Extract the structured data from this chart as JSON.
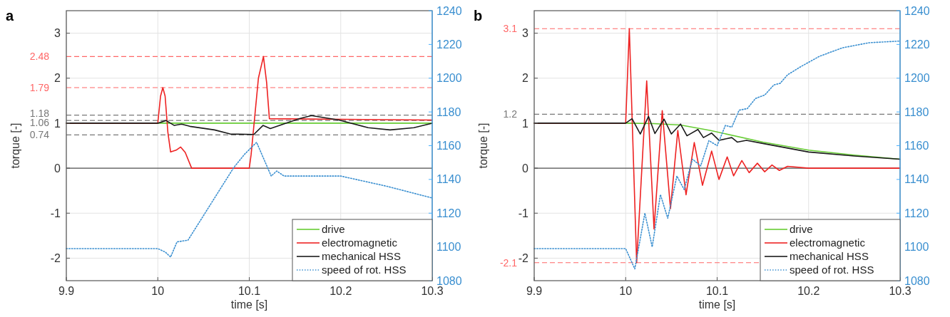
{
  "chart_data": [
    {
      "type": "line",
      "title": "a",
      "xlabel": "time [s]",
      "ylabel": "torque [-]",
      "xlim": [
        9.9,
        10.3
      ],
      "xticks": [
        9.9,
        10,
        10.1,
        10.2,
        10.3
      ],
      "ylim": [
        -2.5,
        3.5
      ],
      "yticks": [
        -2,
        -1,
        0,
        1,
        2,
        3
      ],
      "y2lim": [
        1080,
        1240
      ],
      "y2ticks": [
        1080,
        1100,
        1120,
        1140,
        1160,
        1180,
        1200,
        1220,
        1240
      ],
      "grid": true,
      "legend": "bottom right",
      "ref_lines": [
        {
          "axis": "y",
          "value": 0,
          "color": "#555555",
          "line_style": "solid"
        },
        {
          "axis": "y",
          "value": 2.48,
          "label": "2.48",
          "color": "#ff6666",
          "line_style": "dashed"
        },
        {
          "axis": "y",
          "value": 1.79,
          "label": "1.79",
          "color": "#ff6666",
          "line_style": "dashed"
        },
        {
          "axis": "y",
          "value": 1.18,
          "label": "1.18",
          "color": "#777777",
          "line_style": "dashed"
        },
        {
          "axis": "y",
          "value": 1.06,
          "label": "1.06",
          "color": "#777777",
          "line_style": "dashed"
        },
        {
          "axis": "y",
          "value": 0.74,
          "label": "0.74",
          "color": "#777777",
          "line_style": "dashed"
        }
      ],
      "series": [
        {
          "name": "drive",
          "color": "#66cc33",
          "line_style": "solid",
          "x": [
            9.9,
            10.3
          ],
          "values": [
            1,
            1
          ]
        },
        {
          "name": "electromagnetic",
          "color": "#ee2222",
          "line_style": "solid",
          "x": [
            9.9,
            10.0,
            10.003,
            10.0055,
            10.008,
            10.011,
            10.014,
            10.02,
            10.025,
            10.03,
            10.037,
            10.1,
            10.102,
            10.11,
            10.1155,
            10.119,
            10.122,
            10.3
          ],
          "values": [
            1,
            1,
            1.6,
            1.79,
            1.6,
            0.8,
            0.36,
            0.4,
            0.47,
            0.35,
            0,
            0,
            0.3,
            2.0,
            2.48,
            1.9,
            1.1,
            1.07
          ]
        },
        {
          "name": "mechanical HSS",
          "color": "#1a1a1a",
          "line_style": "solid",
          "x": [
            9.9,
            10.0,
            10.009,
            10.018,
            10.026,
            10.035,
            10.062,
            10.079,
            10.105,
            10.115,
            10.123,
            10.14,
            10.155,
            10.168,
            10.198,
            10.23,
            10.254,
            10.28,
            10.3
          ],
          "values": [
            1,
            1,
            1.06,
            0.95,
            0.98,
            0.93,
            0.85,
            0.76,
            0.75,
            0.95,
            0.88,
            1.0,
            1.1,
            1.17,
            1.07,
            0.9,
            0.85,
            0.9,
            1.0
          ]
        },
        {
          "name": "speed of rot. HSS",
          "color": "#3a8fd0",
          "line_style": "dotted",
          "axis": "y2",
          "x": [
            9.9,
            10.0,
            10.008,
            10.014,
            10.021,
            10.033,
            10.083,
            10.095,
            10.108,
            10.124,
            10.13,
            10.138,
            10.15,
            10.2,
            10.25,
            10.3
          ],
          "values": [
            1099,
            1099,
            1097,
            1094,
            1103,
            1104,
            1147,
            1155,
            1162,
            1142,
            1145,
            1142,
            1142,
            1142,
            1136,
            1129
          ]
        }
      ]
    },
    {
      "type": "line",
      "title": "b",
      "xlabel": "time [s]",
      "ylabel": "torque [-]",
      "xlim": [
        9.9,
        10.3
      ],
      "xticks": [
        9.9,
        10,
        10.1,
        10.2,
        10.3
      ],
      "ylim": [
        -2.5,
        3.5
      ],
      "yticks": [
        -2,
        -1,
        0,
        1,
        2,
        3
      ],
      "y2lim": [
        1080,
        1240
      ],
      "y2ticks": [
        1080,
        1100,
        1120,
        1140,
        1160,
        1180,
        1200,
        1220,
        1240
      ],
      "grid": true,
      "legend": "bottom right",
      "ref_lines": [
        {
          "axis": "y",
          "value": 0,
          "color": "#555555",
          "line_style": "solid"
        },
        {
          "axis": "y",
          "value": 3.1,
          "label": "3.1",
          "color": "#ff6666",
          "line_style": "dashed"
        },
        {
          "axis": "y",
          "value": 1.2,
          "label": "1.2",
          "color": "#777777",
          "line_style": "dashed"
        },
        {
          "axis": "y",
          "value": -2.1,
          "label": "-2.1",
          "color": "#ff6666",
          "line_style": "dashed"
        }
      ],
      "series": [
        {
          "name": "drive",
          "color": "#66cc33",
          "line_style": "solid",
          "x": [
            9.9,
            10.0,
            10.03,
            10.06,
            10.092,
            10.15,
            10.2,
            10.25,
            10.3
          ],
          "values": [
            1,
            1,
            0.99,
            0.96,
            0.84,
            0.58,
            0.4,
            0.29,
            0.2
          ]
        },
        {
          "name": "electromagnetic",
          "color": "#ee2222",
          "line_style": "solid",
          "x": [
            9.9,
            10.0,
            10.004,
            10.012,
            10.023,
            10.031,
            10.04,
            10.049,
            10.057,
            10.066,
            10.075,
            10.084,
            10.094,
            10.102,
            10.111,
            10.118,
            10.127,
            10.135,
            10.144,
            10.152,
            10.16,
            10.168,
            10.177,
            10.2,
            10.3
          ],
          "values": [
            1,
            1,
            3.1,
            -2.1,
            1.94,
            -1.35,
            1.28,
            -0.9,
            0.84,
            -0.59,
            0.57,
            -0.38,
            0.38,
            -0.25,
            0.25,
            -0.17,
            0.17,
            -0.1,
            0.11,
            -0.08,
            0.07,
            -0.05,
            0.04,
            0,
            0
          ]
        },
        {
          "name": "mechanical HSS",
          "color": "#1a1a1a",
          "line_style": "solid",
          "x": [
            9.9,
            10.0,
            10.007,
            10.016,
            10.025,
            10.032,
            10.042,
            10.05,
            10.06,
            10.067,
            10.079,
            10.085,
            10.094,
            10.102,
            10.116,
            10.122,
            10.132,
            10.15,
            10.2,
            10.25,
            10.3
          ],
          "values": [
            1,
            1,
            1.1,
            0.76,
            1.15,
            0.77,
            1.09,
            0.76,
            0.98,
            0.72,
            0.86,
            0.68,
            0.78,
            0.62,
            0.68,
            0.58,
            0.62,
            0.55,
            0.36,
            0.27,
            0.2
          ]
        },
        {
          "name": "speed of rot. HSS",
          "color": "#3a8fd0",
          "line_style": "dotted",
          "axis": "y2",
          "x": [
            9.9,
            10.0,
            10.01,
            10.021,
            10.029,
            10.038,
            10.046,
            10.056,
            10.064,
            10.073,
            10.082,
            10.091,
            10.1,
            10.109,
            10.116,
            10.124,
            10.133,
            10.142,
            10.152,
            10.162,
            10.169,
            10.177,
            10.192,
            10.212,
            10.237,
            10.266,
            10.3
          ],
          "values": [
            1099,
            1099,
            1087,
            1120,
            1100,
            1131,
            1117,
            1142,
            1134,
            1152,
            1148,
            1163,
            1160,
            1172,
            1171,
            1181,
            1182,
            1188,
            1190,
            1196,
            1197,
            1202,
            1207,
            1213,
            1218,
            1221,
            1222
          ]
        }
      ]
    }
  ]
}
